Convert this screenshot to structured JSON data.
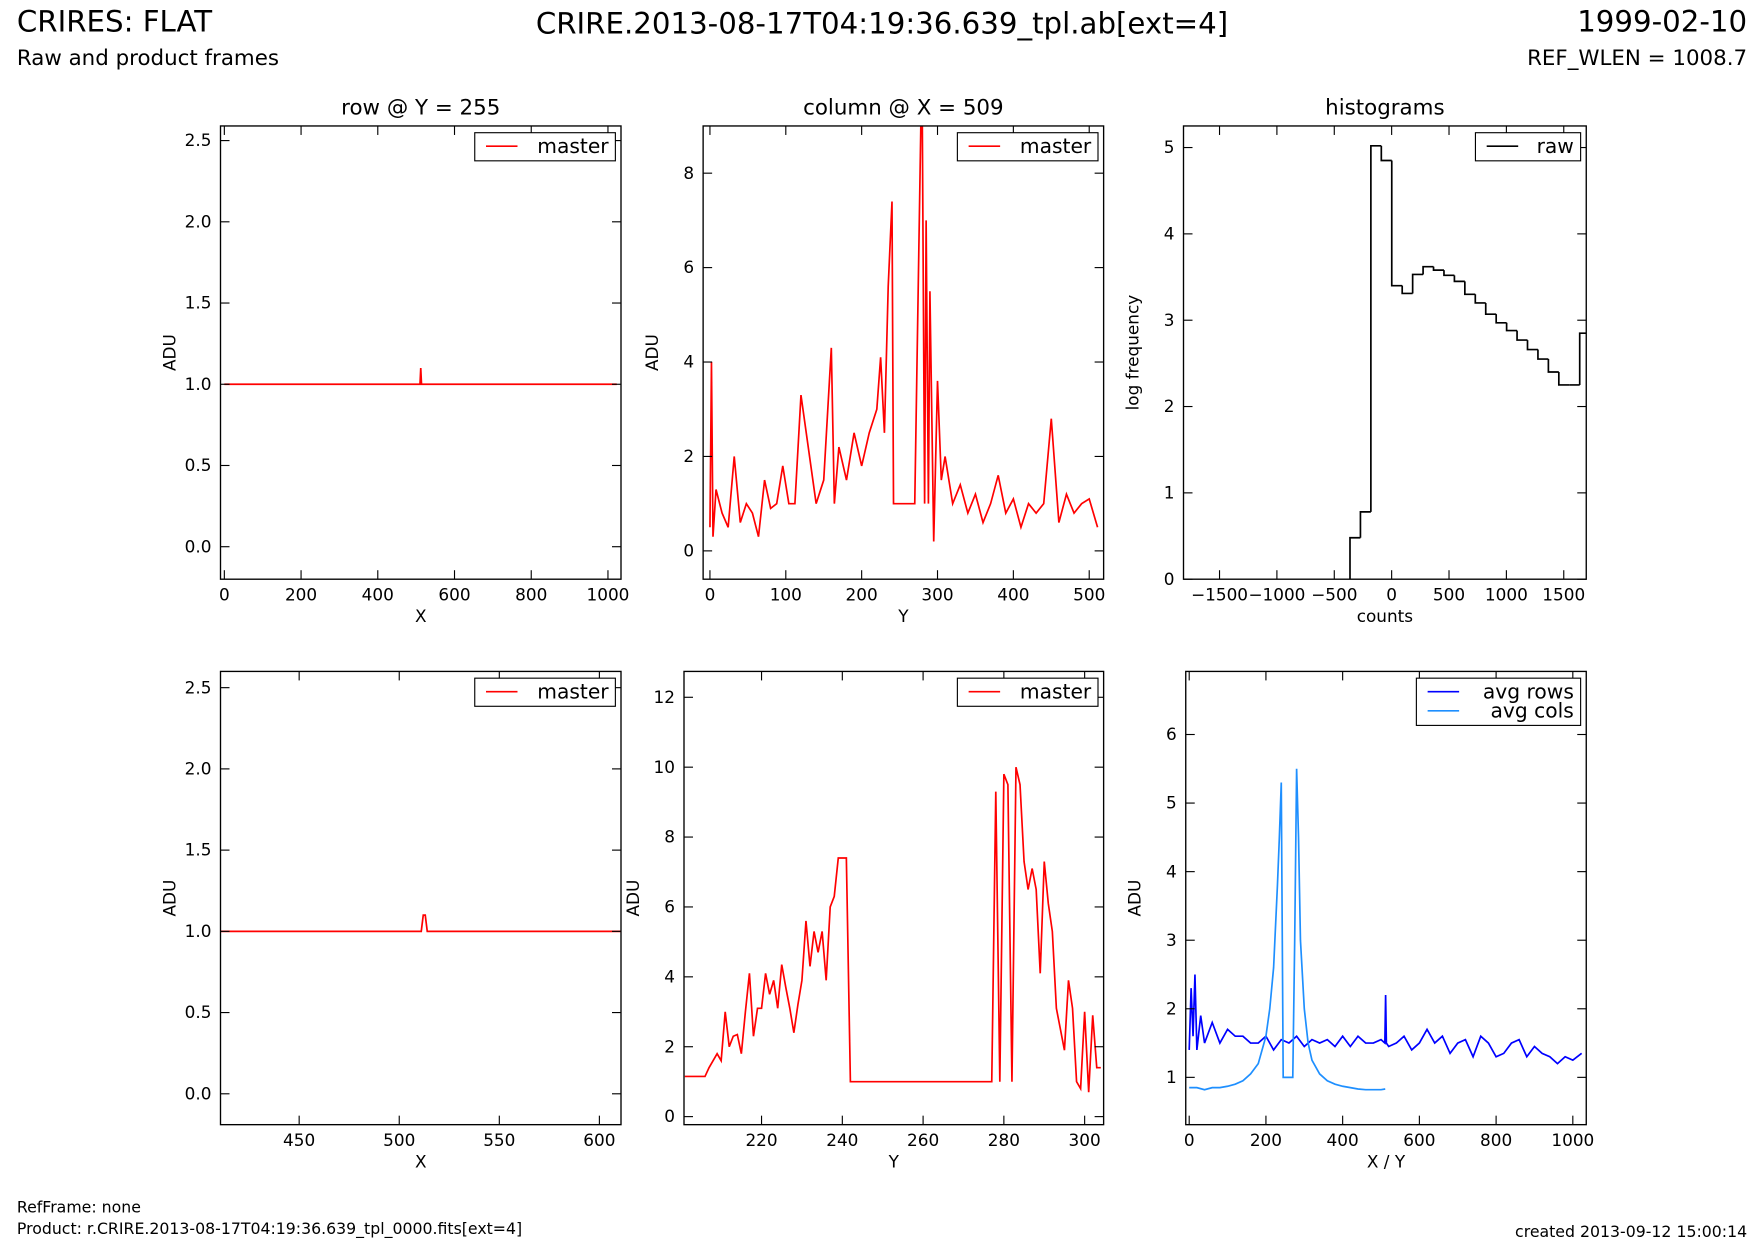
{
  "header": {
    "title": "CRIRES: FLAT",
    "subtitle": "Raw and product frames",
    "file": "CRIRE.2013-08-17T04:19:36.639_tpl.ab[ext=4]",
    "date": "1999-02-10",
    "ref_wlen": "REF_WLEN = 1008.7"
  },
  "footer": {
    "refframe": "RefFrame: none",
    "product": "Product: r.CRIRE.2013-08-17T04:19:36.639_tpl_0000.fits[ext=4]",
    "created": "created 2013-09-12 15:00:14"
  },
  "chart_data": [
    {
      "type": "line",
      "title": "row @ Y = 255",
      "xlabel": "X",
      "ylabel": "ADU",
      "legend": "upper right",
      "series": [
        {
          "name": "master",
          "color": "#ff0000",
          "x": [
            0,
            510,
            512,
            514,
            1023
          ],
          "values": [
            1.0,
            1.0,
            1.1,
            1.0,
            1.0
          ]
        }
      ],
      "xlim": [
        -10,
        1034
      ],
      "xticks": [
        0,
        200,
        400,
        600,
        800,
        1000
      ],
      "ylim": [
        -0.2,
        2.59
      ],
      "yticks": [
        {
          "value": 0,
          "label": "0.0"
        },
        0.5,
        {
          "value": 1,
          "label": "1.0"
        },
        1.5,
        {
          "value": 2,
          "label": "2.0"
        },
        2.5
      ]
    },
    {
      "type": "line",
      "title": "column @ X = 509",
      "xlabel": "Y",
      "ylabel": "ADU",
      "legend": "upper right",
      "series": [
        {
          "name": "master",
          "color": "#ff0000",
          "x": [
            0,
            2,
            4,
            8,
            16,
            24,
            32,
            40,
            48,
            56,
            64,
            72,
            80,
            88,
            96,
            104,
            112,
            120,
            140,
            150,
            160,
            164,
            170,
            180,
            190,
            200,
            210,
            220,
            225,
            230,
            235,
            240,
            242,
            245,
            250,
            270,
            278,
            280,
            283,
            285,
            288,
            290,
            295,
            300,
            305,
            310,
            320,
            330,
            340,
            350,
            360,
            370,
            380,
            390,
            400,
            410,
            420,
            430,
            440,
            450,
            460,
            470,
            480,
            490,
            500,
            511
          ],
          "values": [
            0.5,
            4.0,
            0.3,
            1.3,
            0.8,
            0.5,
            2.0,
            0.6,
            1.0,
            0.8,
            0.3,
            1.5,
            0.9,
            1.0,
            1.8,
            1.0,
            1.0,
            3.3,
            1.0,
            1.5,
            4.3,
            1.0,
            2.2,
            1.5,
            2.5,
            1.8,
            2.5,
            3.0,
            4.1,
            2.5,
            5.6,
            7.4,
            1.0,
            1.0,
            1.0,
            1.0,
            9.0,
            9.0,
            1.0,
            7.0,
            1.0,
            5.5,
            0.2,
            3.6,
            1.5,
            2.0,
            1.0,
            1.4,
            0.8,
            1.2,
            0.6,
            1.0,
            1.6,
            0.8,
            1.1,
            0.5,
            1.0,
            0.8,
            1.0,
            2.8,
            0.6,
            1.2,
            0.8,
            1.0,
            1.1,
            0.5
          ]
        }
      ],
      "xlim": [
        -9,
        519
      ],
      "xticks": [
        0,
        100,
        200,
        300,
        400,
        500
      ],
      "ylim": [
        -0.6,
        9
      ],
      "yticks": [
        0,
        2,
        4,
        6,
        8
      ]
    },
    {
      "type": "histogram",
      "title": "histograms",
      "xlabel": "counts",
      "ylabel": "log frequency",
      "legend": "upper right",
      "bins": [
        -363,
        -272,
        -181,
        -90,
        1,
        92,
        183,
        274,
        365,
        456,
        547,
        638,
        729,
        820,
        911,
        1002,
        1093,
        1184,
        1275,
        1366,
        1457,
        1548,
        1639,
        1730
      ],
      "series": [
        {
          "name": "raw",
          "color": "#000000",
          "values": [
            0.48,
            0.78,
            5.02,
            4.85,
            3.4,
            3.31,
            3.53,
            3.62,
            3.58,
            3.52,
            3.45,
            3.3,
            3.2,
            3.07,
            2.97,
            2.88,
            2.77,
            2.66,
            2.55,
            2.4,
            2.25,
            2.25,
            2.85
          ]
        }
      ],
      "xlim": [
        -1814,
        1696
      ],
      "xticks": [
        {
          "value": -1500,
          "label": "−1500"
        },
        {
          "value": -1000,
          "label": "−1000"
        },
        {
          "value": -500,
          "label": "−500"
        },
        0,
        500,
        1000,
        1500
      ],
      "ylim": [
        0,
        5.25
      ],
      "yticks": [
        0,
        1,
        2,
        3,
        4,
        5
      ]
    },
    {
      "type": "line",
      "xlabel": "X",
      "ylabel": "ADU",
      "legend": "upper right",
      "series": [
        {
          "name": "master",
          "color": "#ff0000",
          "x": [
            410,
            511,
            512,
            513,
            514,
            611
          ],
          "values": [
            1.0,
            1.0,
            1.1,
            1.1,
            1.0,
            1.0
          ]
        }
      ],
      "xlim": [
        410.7,
        610.8
      ],
      "xticks": [
        450,
        500,
        550,
        600
      ],
      "ylim": [
        -0.19,
        2.6
      ],
      "yticks": [
        {
          "value": 0,
          "label": "0.0"
        },
        0.5,
        {
          "value": 1,
          "label": "1.0"
        },
        1.5,
        {
          "value": 2,
          "label": "2.0"
        },
        2.5
      ]
    },
    {
      "type": "line",
      "xlabel": "Y",
      "ylabel": "ADU",
      "legend": "upper right",
      "series": [
        {
          "name": "master",
          "color": "#ff0000",
          "x": [
            201,
            202,
            203,
            204,
            205,
            206,
            207,
            208,
            209,
            210,
            211,
            212,
            213,
            214,
            215,
            216,
            217,
            218,
            219,
            220,
            221,
            222,
            223,
            224,
            225,
            226,
            227,
            228,
            229,
            230,
            231,
            232,
            233,
            234,
            235,
            236,
            237,
            238,
            239,
            240,
            241,
            242,
            277,
            278,
            279,
            280,
            281,
            282,
            283,
            284,
            285,
            286,
            287,
            288,
            289,
            290,
            291,
            292,
            293,
            294,
            295,
            296,
            297,
            298,
            299,
            300,
            301,
            302,
            303,
            304
          ],
          "values": [
            1.15,
            1.15,
            1.15,
            1.15,
            1.15,
            1.15,
            1.4,
            1.6,
            1.8,
            1.6,
            3.0,
            2.0,
            2.3,
            2.35,
            1.8,
            3.0,
            4.1,
            2.3,
            3.1,
            3.1,
            4.1,
            3.5,
            3.9,
            3.1,
            4.35,
            3.7,
            3.1,
            2.4,
            3.2,
            3.9,
            5.6,
            4.3,
            5.3,
            4.7,
            5.3,
            3.9,
            6.0,
            6.3,
            7.4,
            7.4,
            7.4,
            1.0,
            1.0,
            9.3,
            1.0,
            9.8,
            9.5,
            1.0,
            10.0,
            9.5,
            7.3,
            6.5,
            7.1,
            6.5,
            4.1,
            7.3,
            6.1,
            5.3,
            3.1,
            2.5,
            1.9,
            3.9,
            3.1,
            1.0,
            0.8,
            3.0,
            0.7,
            2.9,
            1.4,
            1.4
          ]
        }
      ],
      "xlim": [
        200.8,
        304.7
      ],
      "xticks": [
        220,
        240,
        260,
        280,
        300
      ],
      "ylim": [
        -0.23,
        12.74
      ],
      "yticks": [
        0,
        2,
        4,
        6,
        8,
        10,
        12
      ]
    },
    {
      "type": "line",
      "xlabel": "X / Y",
      "ylabel": "ADU",
      "legend": "upper right",
      "series": [
        {
          "name": "avg rows",
          "color": "#0000ff",
          "x": [
            0,
            5,
            10,
            15,
            20,
            30,
            40,
            60,
            80,
            100,
            120,
            140,
            160,
            180,
            200,
            220,
            240,
            260,
            280,
            300,
            320,
            340,
            360,
            380,
            400,
            420,
            440,
            460,
            480,
            500,
            510,
            512,
            514,
            520,
            540,
            560,
            580,
            600,
            620,
            640,
            660,
            680,
            700,
            720,
            740,
            760,
            780,
            800,
            820,
            840,
            860,
            880,
            900,
            920,
            940,
            960,
            980,
            1000,
            1023
          ],
          "values": [
            1.4,
            2.3,
            1.6,
            2.5,
            1.4,
            1.9,
            1.5,
            1.8,
            1.5,
            1.7,
            1.6,
            1.6,
            1.5,
            1.5,
            1.6,
            1.4,
            1.55,
            1.5,
            1.6,
            1.45,
            1.55,
            1.5,
            1.55,
            1.45,
            1.6,
            1.45,
            1.6,
            1.5,
            1.5,
            1.55,
            1.5,
            2.2,
            1.5,
            1.45,
            1.5,
            1.6,
            1.4,
            1.5,
            1.7,
            1.5,
            1.6,
            1.35,
            1.5,
            1.55,
            1.3,
            1.6,
            1.5,
            1.3,
            1.35,
            1.5,
            1.55,
            1.3,
            1.45,
            1.35,
            1.3,
            1.2,
            1.3,
            1.25,
            1.35
          ]
        },
        {
          "name": "avg cols",
          "color": "#1e8fff",
          "x": [
            0,
            20,
            40,
            60,
            80,
            100,
            120,
            140,
            160,
            180,
            200,
            210,
            220,
            230,
            235,
            240,
            245,
            250,
            260,
            270,
            275,
            280,
            285,
            290,
            300,
            310,
            320,
            340,
            360,
            380,
            400,
            420,
            440,
            460,
            480,
            500,
            511
          ],
          "values": [
            0.85,
            0.85,
            0.82,
            0.85,
            0.85,
            0.87,
            0.9,
            0.95,
            1.05,
            1.2,
            1.6,
            2.0,
            2.6,
            3.8,
            4.5,
            5.3,
            1.0,
            1.0,
            1.0,
            1.0,
            3.0,
            5.5,
            4.5,
            3.0,
            2.0,
            1.5,
            1.25,
            1.05,
            0.95,
            0.9,
            0.87,
            0.85,
            0.83,
            0.82,
            0.82,
            0.82,
            0.83
          ]
        }
      ],
      "xlim": [
        -9,
        1035
      ],
      "xticks": [
        0,
        200,
        400,
        600,
        800,
        1000
      ],
      "ylim": [
        0.31,
        6.92
      ],
      "yticks": [
        1,
        2,
        3,
        4,
        5,
        6
      ]
    }
  ]
}
